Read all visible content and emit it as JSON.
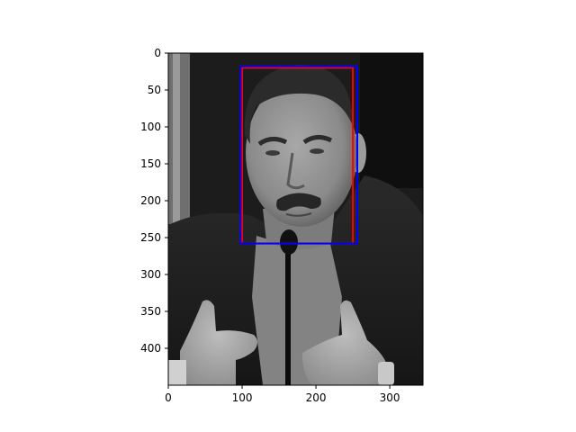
{
  "chart_data": {
    "type": "image-with-boxes",
    "image": {
      "width": 345,
      "height": 450,
      "colormap": "gray",
      "description_kind": "photo"
    },
    "xlim": [
      0,
      345
    ],
    "ylim": [
      450,
      0
    ],
    "xticks": [
      0,
      100,
      200,
      300
    ],
    "yticks": [
      0,
      50,
      100,
      150,
      200,
      250,
      300,
      350,
      400
    ],
    "xtick_labels": [
      "0",
      "100",
      "200",
      "300"
    ],
    "ytick_labels": [
      "0",
      "50",
      "100",
      "150",
      "200",
      "250",
      "300",
      "350",
      "400"
    ],
    "boxes": [
      {
        "x0": 100,
        "y0": 20,
        "x1": 250,
        "y1": 258,
        "color": "#ff0000"
      },
      {
        "x0": 98,
        "y0": 18,
        "x1": 256,
        "y1": 258,
        "color": "#0000ff"
      }
    ],
    "title": "",
    "xlabel": "",
    "ylabel": "",
    "grid": false
  }
}
